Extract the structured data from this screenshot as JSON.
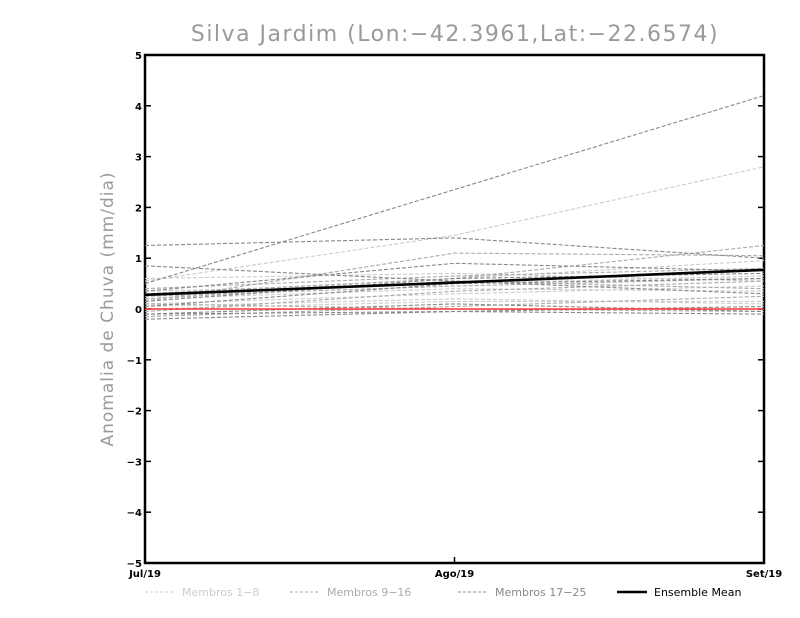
{
  "chart_data": {
    "type": "line",
    "title": "Silva Jardim (Lon:−42.3961,Lat:−22.6574)",
    "xlabel": "",
    "ylabel": "Anomalia de Chuva (mm/dia)",
    "categories": [
      "Jul/19",
      "Ago/19",
      "Set/19"
    ],
    "ylim": [
      -5,
      5
    ],
    "yticks": [
      "−5",
      "−4",
      "−3",
      "−2",
      "−1",
      "0",
      "1",
      "2",
      "3",
      "4",
      "5"
    ],
    "grid": false,
    "zero_line_color": "#ff3333",
    "legend_position": "bottom",
    "legend": [
      {
        "label": "Membros 1−8",
        "color": "#cccccc",
        "dash": "dashed"
      },
      {
        "label": "Membros 9−16",
        "color": "#aaaaaa",
        "dash": "dashed"
      },
      {
        "label": "Membros 17−25",
        "color": "#888888",
        "dash": "dashed"
      },
      {
        "label": "Ensemble Mean",
        "color": "#000000",
        "dash": "solid"
      }
    ],
    "series": [
      {
        "group": 1,
        "values": [
          0.55,
          1.45,
          2.8
        ]
      },
      {
        "group": 1,
        "values": [
          0.25,
          0.6,
          0.95
        ]
      },
      {
        "group": 1,
        "values": [
          0.35,
          0.5,
          0.65
        ]
      },
      {
        "group": 1,
        "values": [
          0.1,
          0.3,
          0.45
        ]
      },
      {
        "group": 1,
        "values": [
          0.2,
          0.4,
          0.35
        ]
      },
      {
        "group": 1,
        "values": [
          0.0,
          0.15,
          0.15
        ]
      },
      {
        "group": 1,
        "values": [
          0.6,
          0.7,
          0.55
        ]
      },
      {
        "group": 1,
        "values": [
          0.05,
          0.2,
          0.1
        ]
      },
      {
        "group": 2,
        "values": [
          0.3,
          0.6,
          1.25
        ]
      },
      {
        "group": 2,
        "values": [
          0.15,
          1.1,
          1.05
        ]
      },
      {
        "group": 2,
        "values": [
          -0.05,
          0.35,
          0.55
        ]
      },
      {
        "group": 2,
        "values": [
          0.2,
          0.55,
          0.4
        ]
      },
      {
        "group": 2,
        "values": [
          -0.15,
          0.05,
          0.25
        ]
      },
      {
        "group": 2,
        "values": [
          0.4,
          0.65,
          0.8
        ]
      },
      {
        "group": 2,
        "values": [
          0.1,
          0.0,
          -0.05
        ]
      },
      {
        "group": 2,
        "values": [
          0.25,
          0.45,
          0.6
        ]
      },
      {
        "group": 3,
        "values": [
          0.5,
          2.35,
          4.2
        ]
      },
      {
        "group": 3,
        "values": [
          1.25,
          1.4,
          1.0
        ]
      },
      {
        "group": 3,
        "values": [
          0.85,
          0.55,
          0.3
        ]
      },
      {
        "group": 3,
        "values": [
          0.35,
          0.9,
          0.75
        ]
      },
      {
        "group": 3,
        "values": [
          -0.1,
          -0.05,
          0.05
        ]
      },
      {
        "group": 3,
        "values": [
          -0.2,
          -0.05,
          -0.1
        ]
      },
      {
        "group": 3,
        "values": [
          0.15,
          0.6,
          0.7
        ]
      },
      {
        "group": 3,
        "values": [
          0.05,
          0.5,
          0.6
        ]
      },
      {
        "group": 3,
        "values": [
          -0.1,
          0.1,
          -0.05
        ]
      }
    ],
    "ensemble_mean": [
      0.28,
      0.52,
      0.77
    ],
    "zero_line": [
      0.0,
      0.0,
      0.0
    ]
  }
}
